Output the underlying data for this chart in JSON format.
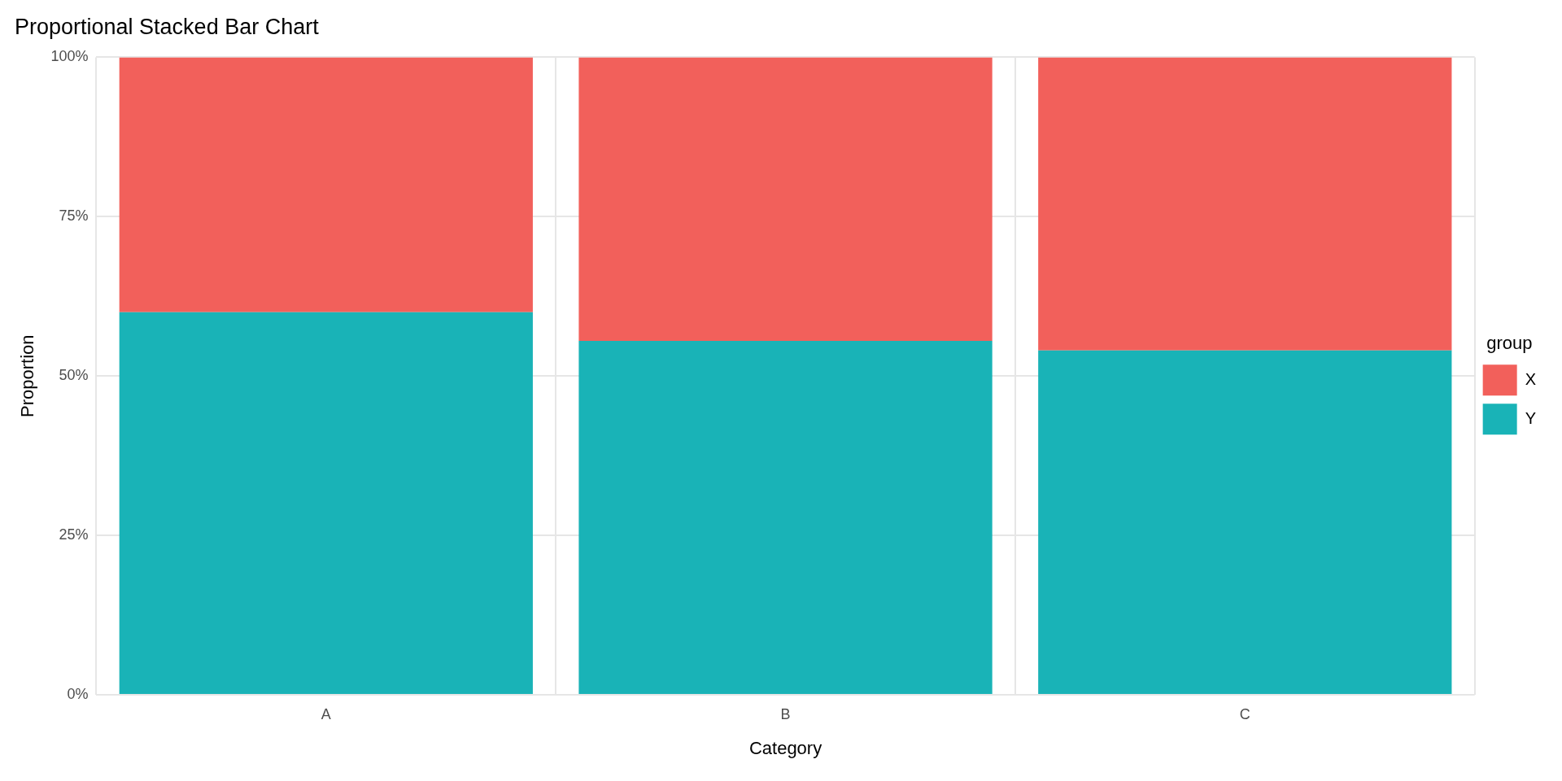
{
  "chart_data": {
    "type": "bar",
    "title": "Proportional Stacked Bar Chart",
    "xlabel": "Category",
    "ylabel": "Proportion",
    "legend_title": "group",
    "categories": [
      "A",
      "B",
      "C"
    ],
    "series": [
      {
        "name": "Y",
        "color": "#19b3b7",
        "values": [
          60,
          55.5,
          54
        ]
      },
      {
        "name": "X",
        "color": "#f2605b",
        "values": [
          40,
          44.5,
          46
        ]
      }
    ],
    "stacked": true,
    "ylim": [
      0,
      100
    ],
    "yticks": [
      {
        "value": 0,
        "label": "0%"
      },
      {
        "value": 25,
        "label": "25%"
      },
      {
        "value": 50,
        "label": "50%"
      },
      {
        "value": 75,
        "label": "75%"
      },
      {
        "value": 100,
        "label": "100%"
      }
    ],
    "grid": true,
    "legend": "right"
  }
}
